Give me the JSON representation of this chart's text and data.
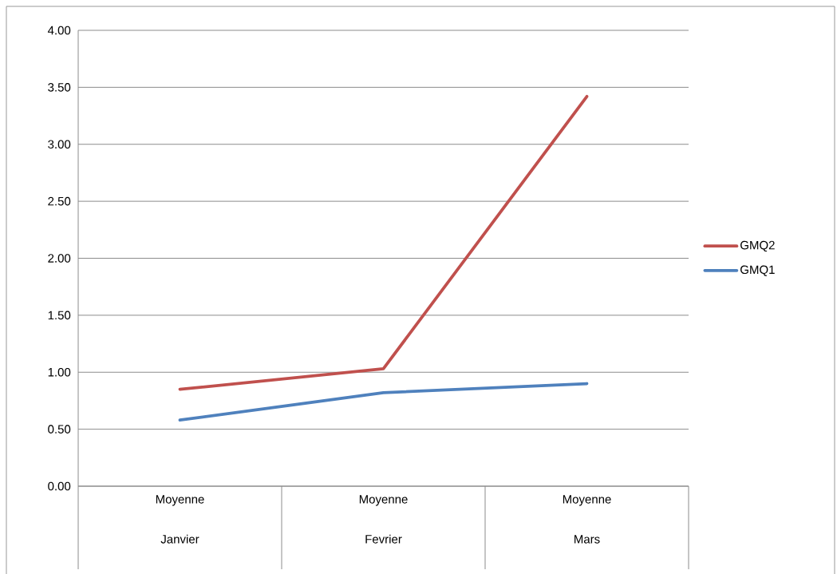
{
  "chart_data": {
    "type": "line",
    "categories": [
      "Moyenne Janvier",
      "Moyenne Fevrier",
      "Moyenne Mars"
    ],
    "series": [
      {
        "name": "GMQ2",
        "color": "#c0504d",
        "values": [
          0.85,
          1.03,
          3.42
        ]
      },
      {
        "name": "GMQ1",
        "color": "#4f81bd",
        "values": [
          0.58,
          0.82,
          0.9
        ]
      }
    ],
    "ylim": [
      0,
      4
    ],
    "yticks": [
      {
        "value": 0,
        "label": "0.00"
      },
      {
        "value": 0.5,
        "label": "0.50"
      },
      {
        "value": 1,
        "label": "1.00"
      },
      {
        "value": 1.5,
        "label": "1.50"
      },
      {
        "value": 2,
        "label": "2.00"
      },
      {
        "value": 2.5,
        "label": "2.50"
      },
      {
        "value": 3,
        "label": "3.00"
      },
      {
        "value": 3.5,
        "label": "3.50"
      },
      {
        "value": 4,
        "label": "4.00"
      }
    ],
    "grid": "y",
    "legend": "right",
    "marker": "none",
    "line_style": "solid"
  }
}
